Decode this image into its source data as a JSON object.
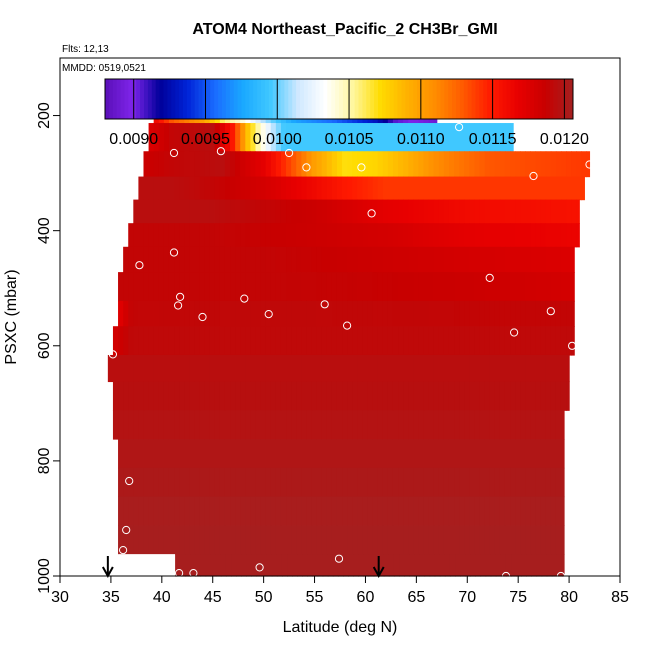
{
  "chart_data": {
    "type": "heatmap",
    "title": "ATOM4 Northeast_Pacific_2 CH3Br_GMI",
    "flights_label": "Flts: 12,13",
    "date_label": "MMDD: 0519,0521",
    "xlabel": "Latitude (deg N)",
    "ylabel": "PSXC (mbar)",
    "xlim": [
      30,
      85
    ],
    "ylim": [
      1000,
      100
    ],
    "x_ticks": [
      "30",
      "35",
      "40",
      "45",
      "50",
      "55",
      "60",
      "65",
      "70",
      "75",
      "80",
      "85"
    ],
    "y_ticks": [
      "200",
      "400",
      "600",
      "800",
      "1000"
    ],
    "colorbar": {
      "min": 0.0088,
      "max": 0.01206,
      "ticks": [
        "0.0090",
        "0.0095",
        "0.0100",
        "0.0105",
        "0.0110",
        "0.0115",
        "0.0120"
      ],
      "colors": [
        "#5a0fb8",
        "#7f25ea",
        "#00009a",
        "#0024d8",
        "#1a6cff",
        "#1aa8ff",
        "#40c8ff",
        "#cfe8ff",
        "#ffffff",
        "#fff7a0",
        "#ffdc00",
        "#ffb000",
        "#ff8c00",
        "#ff5a00",
        "#ff1a00",
        "#e80000",
        "#c80000",
        "#a52020"
      ]
    },
    "rows": [
      {
        "p_top": 170,
        "p_bot": 213,
        "x_start": 39.2,
        "x_end": 67.0,
        "profile": [
          [
            39.2,
            0.01165
          ],
          [
            41,
            0.0113
          ],
          [
            44,
            0.011
          ],
          [
            46,
            0.0106
          ],
          [
            48,
            0.0104
          ],
          [
            50,
            0.0101
          ],
          [
            53,
            0.00975
          ],
          [
            57,
            0.00955
          ],
          [
            61,
            0.0093
          ],
          [
            63,
            0.00905
          ],
          [
            67,
            0.0089
          ]
        ]
      },
      {
        "p_top": 213,
        "p_bot": 262,
        "x_start": 38.7,
        "x_end": 74.5,
        "profile": [
          [
            38.7,
            0.01175
          ],
          [
            41,
            0.0119
          ],
          [
            45,
            0.01195
          ],
          [
            47,
            0.0115
          ],
          [
            48.5,
            0.0108
          ],
          [
            49.5,
            0.0105
          ],
          [
            51,
            0.0101
          ],
          [
            52,
            0.00995
          ],
          [
            74.5,
            0.00995
          ]
        ]
      },
      {
        "p_top": 262,
        "p_bot": 306,
        "x_start": 38.2,
        "x_end": 82.0,
        "profile": [
          [
            38.2,
            0.01185
          ],
          [
            41,
            0.0119
          ],
          [
            46,
            0.01195
          ],
          [
            50,
            0.0117
          ],
          [
            53,
            0.0113
          ],
          [
            55,
            0.011
          ],
          [
            58,
            0.0107
          ],
          [
            61,
            0.01075
          ],
          [
            64,
            0.0109
          ],
          [
            67,
            0.0111
          ],
          [
            72,
            0.0113
          ],
          [
            82,
            0.0114
          ]
        ]
      },
      {
        "p_top": 306,
        "p_bot": 346,
        "x_start": 37.7,
        "x_end": 81.5,
        "profile": [
          [
            37.7,
            0.01195
          ],
          [
            41,
            0.01195
          ],
          [
            45,
            0.0119
          ],
          [
            50,
            0.0118
          ],
          [
            54,
            0.01165
          ],
          [
            58,
            0.0115
          ],
          [
            62,
            0.0114
          ],
          [
            70,
            0.0114
          ],
          [
            81.5,
            0.0114
          ]
        ]
      },
      {
        "p_top": 346,
        "p_bot": 387,
        "x_start": 37.2,
        "x_end": 81.0,
        "profile": [
          [
            37.2,
            0.01195
          ],
          [
            45,
            0.01195
          ],
          [
            55,
            0.01185
          ],
          [
            62,
            0.0117
          ],
          [
            70,
            0.0116
          ],
          [
            81,
            0.01155
          ]
        ]
      },
      {
        "p_top": 387,
        "p_bot": 428,
        "x_start": 36.7,
        "x_end": 81.0,
        "profile": [
          [
            36.7,
            0.0119
          ],
          [
            45,
            0.0119
          ],
          [
            55,
            0.01185
          ],
          [
            62,
            0.0118
          ],
          [
            70,
            0.0117
          ],
          [
            81,
            0.01165
          ]
        ]
      },
      {
        "p_top": 428,
        "p_bot": 472,
        "x_start": 36.2,
        "x_end": 80.5,
        "profile": [
          [
            36.2,
            0.0119
          ],
          [
            50,
            0.0119
          ],
          [
            60,
            0.01185
          ],
          [
            70,
            0.0118
          ],
          [
            80.5,
            0.01175
          ]
        ]
      },
      {
        "p_top": 472,
        "p_bot": 522,
        "x_start": 35.7,
        "x_end": 80.5,
        "profile": [
          [
            35.7,
            0.0119
          ],
          [
            50,
            0.0119
          ],
          [
            60,
            0.01188
          ],
          [
            70,
            0.01185
          ],
          [
            80.5,
            0.0118
          ]
        ]
      },
      {
        "p_top": 522,
        "p_bot": 566,
        "x_start": 35.7,
        "x_end": 80.5,
        "profile": [
          [
            35.7,
            0.0117
          ],
          [
            37,
            0.0119
          ],
          [
            50,
            0.01192
          ],
          [
            70,
            0.0119
          ],
          [
            80.5,
            0.0119
          ]
        ]
      },
      {
        "p_top": 566,
        "p_bot": 616,
        "x_start": 35.2,
        "x_end": 80.5,
        "profile": [
          [
            35.2,
            0.0118
          ],
          [
            37,
            0.01192
          ],
          [
            80.5,
            0.01192
          ]
        ]
      },
      {
        "p_top": 616,
        "p_bot": 662,
        "x_start": 34.7,
        "x_end": 80.0,
        "profile": [
          [
            34.7,
            0.01195
          ],
          [
            60,
            0.01195
          ],
          [
            80,
            0.01195
          ]
        ]
      },
      {
        "p_top": 662,
        "p_bot": 712,
        "x_start": 35.2,
        "x_end": 80.0,
        "profile": [
          [
            35.2,
            0.01196
          ],
          [
            80,
            0.01196
          ]
        ]
      },
      {
        "p_top": 712,
        "p_bot": 762,
        "x_start": 35.2,
        "x_end": 79.5,
        "profile": [
          [
            35.2,
            0.01198
          ],
          [
            79.5,
            0.01198
          ]
        ]
      },
      {
        "p_top": 762,
        "p_bot": 812,
        "x_start": 35.7,
        "x_end": 79.5,
        "profile": [
          [
            35.7,
            0.012
          ],
          [
            79.5,
            0.012
          ]
        ]
      },
      {
        "p_top": 812,
        "p_bot": 862,
        "x_start": 35.7,
        "x_end": 79.5,
        "profile": [
          [
            35.7,
            0.01202
          ],
          [
            79.5,
            0.01202
          ]
        ]
      },
      {
        "p_top": 862,
        "p_bot": 912,
        "x_start": 35.7,
        "x_end": 79.5,
        "profile": [
          [
            35.7,
            0.01204
          ],
          [
            79.5,
            0.01204
          ]
        ]
      },
      {
        "p_top": 912,
        "p_bot": 962,
        "x_start": 35.7,
        "x_end": 79.5,
        "profile": [
          [
            35.7,
            0.01205
          ],
          [
            79.5,
            0.01205
          ]
        ]
      },
      {
        "p_top": 962,
        "p_bot": 1000,
        "x_start": 41.3,
        "x_end": 79.5,
        "profile": [
          [
            41.3,
            0.01205
          ],
          [
            79.5,
            0.01205
          ]
        ]
      }
    ],
    "white_patch": {
      "p_top": 962,
      "p_bot": 1000,
      "x_start": 35.7,
      "x_end": 41.3
    },
    "points": [
      [
        39.5,
        195
      ],
      [
        41.2,
        265
      ],
      [
        45.8,
        262
      ],
      [
        52.5,
        265
      ],
      [
        54.2,
        290
      ],
      [
        59.6,
        290
      ],
      [
        64.3,
        190
      ],
      [
        67,
        190
      ],
      [
        69.2,
        220
      ],
      [
        76.5,
        305
      ],
      [
        82,
        285
      ],
      [
        60.6,
        370
      ],
      [
        41.2,
        438
      ],
      [
        37.8,
        460
      ],
      [
        41.8,
        515
      ],
      [
        41.6,
        530
      ],
      [
        44,
        550
      ],
      [
        48.1,
        518
      ],
      [
        50.5,
        545
      ],
      [
        56,
        528
      ],
      [
        58.2,
        565
      ],
      [
        72.2,
        482
      ],
      [
        74.6,
        577
      ],
      [
        78.2,
        540
      ],
      [
        80.3,
        600
      ],
      [
        35.2,
        615
      ],
      [
        36.8,
        835
      ],
      [
        36.5,
        920
      ],
      [
        36.2,
        955
      ],
      [
        41.7,
        995
      ],
      [
        43.1,
        995
      ],
      [
        49.6,
        985
      ],
      [
        57.4,
        970
      ],
      [
        73.8,
        1000
      ],
      [
        79.2,
        1000
      ]
    ],
    "arrows_x": [
      34.7,
      61.3
    ]
  }
}
